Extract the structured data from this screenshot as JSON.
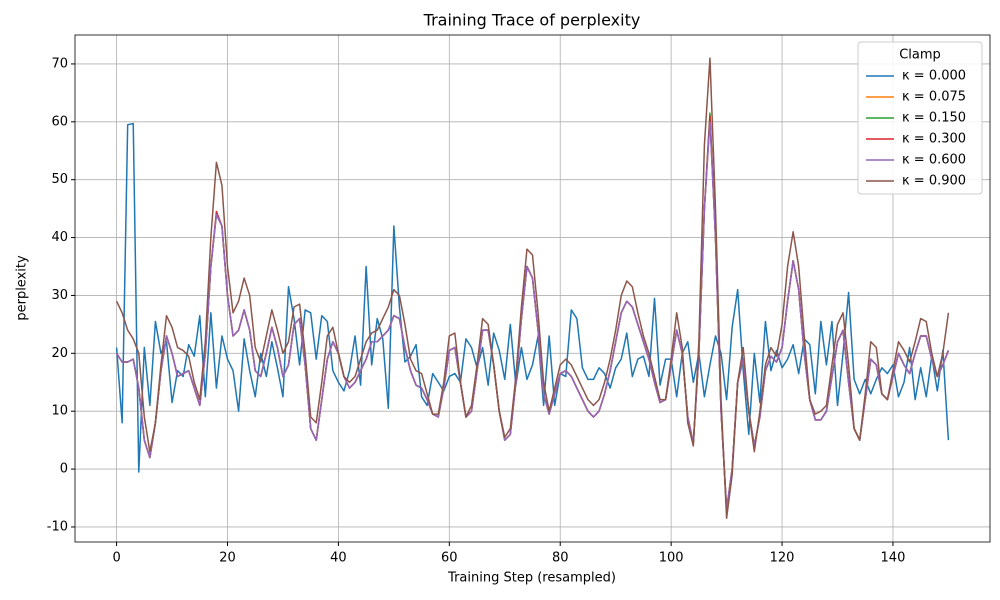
{
  "chart_data": {
    "type": "line",
    "title": "Training Trace of perplexity",
    "x_label": "Training Step (resampled)",
    "y_label": "perplexity",
    "xlim": [
      -7.5,
      157.5
    ],
    "ylim": [
      -12.6,
      75
    ],
    "xticks": [
      0,
      20,
      40,
      60,
      80,
      100,
      120,
      140
    ],
    "yticks": [
      -10,
      0,
      10,
      20,
      30,
      40,
      50,
      60,
      70
    ],
    "grid": true,
    "legend_title": "Clamp",
    "legend_position": "upper-right",
    "x": [
      0,
      1,
      2,
      3,
      4,
      5,
      6,
      7,
      8,
      9,
      10,
      11,
      12,
      13,
      14,
      15,
      16,
      17,
      18,
      19,
      20,
      21,
      22,
      23,
      24,
      25,
      26,
      27,
      28,
      29,
      30,
      31,
      32,
      33,
      34,
      35,
      36,
      37,
      38,
      39,
      40,
      41,
      42,
      43,
      44,
      45,
      46,
      47,
      48,
      49,
      50,
      51,
      52,
      53,
      54,
      55,
      56,
      57,
      58,
      59,
      60,
      61,
      62,
      63,
      64,
      65,
      66,
      67,
      68,
      69,
      70,
      71,
      72,
      73,
      74,
      75,
      76,
      77,
      78,
      79,
      80,
      81,
      82,
      83,
      84,
      85,
      86,
      87,
      88,
      89,
      90,
      91,
      92,
      93,
      94,
      95,
      96,
      97,
      98,
      99,
      100,
      101,
      102,
      103,
      104,
      105,
      106,
      107,
      108,
      109,
      110,
      111,
      112,
      113,
      114,
      115,
      116,
      117,
      118,
      119,
      120,
      121,
      122,
      123,
      124,
      125,
      126,
      127,
      128,
      129,
      130,
      131,
      132,
      133,
      134,
      135,
      136,
      137,
      138,
      139,
      140,
      141,
      142,
      143,
      144,
      145,
      146,
      147,
      148,
      149,
      150
    ],
    "series": [
      {
        "name": "κ = 0.000",
        "color": "#1f77b4",
        "values": [
          21,
          8,
          59.5,
          59.7,
          -0.5,
          21,
          11,
          25.5,
          20,
          22,
          11.5,
          17,
          16,
          21.5,
          19.5,
          26.5,
          12.5,
          27,
          14,
          23,
          19,
          17,
          10,
          22.5,
          17,
          12.5,
          20,
          16,
          22,
          17.5,
          12.5,
          31.5,
          26,
          18,
          27.5,
          27,
          19,
          26.5,
          25.5,
          17,
          15,
          13.5,
          17,
          23,
          14.5,
          35,
          18,
          26,
          22.5,
          10.5,
          42,
          28,
          18.5,
          19.5,
          21.5,
          12.5,
          11,
          16.5,
          15,
          13.5,
          16,
          16.5,
          15,
          22.5,
          21,
          17.5,
          21,
          14.5,
          23.5,
          20.5,
          15.5,
          25,
          14.5,
          21,
          15.5,
          18,
          23,
          11,
          23,
          11,
          16.5,
          16,
          27.5,
          26,
          17.5,
          15.5,
          15.5,
          17.5,
          16.5,
          14,
          17.5,
          19,
          23.5,
          16,
          19,
          19.5,
          16,
          29.5,
          14.5,
          19,
          19,
          12.5,
          20,
          22,
          15,
          20,
          12.5,
          18,
          23,
          20,
          12,
          24.5,
          31,
          17,
          6,
          20,
          11.5,
          25.5,
          17,
          20.5,
          17.5,
          19,
          21.5,
          16.5,
          22.5,
          21.5,
          13,
          25.5,
          18,
          25.5,
          11,
          20,
          30.5,
          15.5,
          13,
          15.5,
          13,
          15.5,
          17.5,
          16.5,
          18,
          12.5,
          15,
          21,
          12,
          17.5,
          12.5,
          19.5,
          13.5,
          20.5,
          5
        ]
      },
      {
        "name": "κ = 0.075",
        "color": "#ff7f0e",
        "values": [
          20,
          18.5,
          18.5,
          19,
          14,
          5,
          2,
          8,
          17,
          23,
          20,
          16,
          16.5,
          17,
          14,
          11,
          20,
          35,
          44,
          42,
          30,
          23,
          24,
          27.5,
          24,
          17,
          16,
          20,
          24.5,
          21,
          16,
          18,
          25,
          26,
          18,
          7,
          5,
          12,
          19,
          22,
          20,
          16,
          14,
          15,
          17,
          19,
          22,
          22,
          23,
          24,
          26.5,
          26,
          21,
          17,
          14.5,
          14,
          12,
          9.5,
          9,
          14,
          20.5,
          21,
          15,
          9,
          10,
          17,
          24,
          24,
          18,
          10,
          5,
          6,
          15,
          26,
          35,
          33,
          24,
          13,
          9.5,
          13,
          16.5,
          17,
          16,
          14,
          12,
          10,
          9,
          10,
          13,
          17,
          22,
          27,
          29,
          28,
          25,
          22,
          19,
          15,
          11.5,
          12,
          18,
          24,
          20,
          9,
          4.5,
          20,
          45,
          60.5,
          40,
          10,
          -7,
          0,
          15,
          19,
          10,
          4,
          9,
          17,
          19.5,
          18.5,
          21,
          29,
          36,
          31,
          20,
          12,
          8.5,
          8.5,
          10,
          16,
          22,
          24,
          15,
          7,
          5,
          12,
          19,
          18,
          13,
          12,
          16,
          20,
          18,
          16.5,
          20,
          23,
          23,
          19,
          16,
          18,
          20.5
        ]
      },
      {
        "name": "κ = 0.150",
        "color": "#2ca02c",
        "values": [
          20,
          18.5,
          18.5,
          19,
          14,
          5,
          2,
          8,
          17,
          23,
          20,
          16,
          16.5,
          17,
          14,
          11,
          20,
          35,
          44,
          42,
          30,
          23,
          24,
          27.5,
          24,
          17,
          16,
          20,
          24.5,
          21,
          16,
          18,
          25,
          26,
          18,
          7,
          5,
          12,
          19,
          22,
          20,
          16,
          14,
          15,
          17,
          19,
          22,
          22,
          23,
          24,
          26.5,
          26,
          21,
          17,
          14.5,
          14,
          12,
          9.5,
          9,
          14,
          20.5,
          21,
          15,
          9,
          10,
          17,
          24,
          24,
          18,
          10,
          5,
          6,
          15,
          26,
          35,
          33,
          24,
          13,
          9.5,
          13,
          16.5,
          17,
          16,
          14,
          12,
          10,
          9,
          10,
          13,
          17,
          22,
          27,
          29,
          28,
          25,
          22,
          19,
          15,
          11.5,
          12,
          18,
          24,
          20,
          9,
          4.5,
          20,
          45,
          61.5,
          40,
          10,
          -7,
          0,
          15,
          19,
          10,
          4,
          9,
          17,
          19.5,
          18.5,
          21,
          29,
          36,
          31,
          20,
          12,
          8.5,
          8.5,
          10,
          16,
          22,
          24,
          15,
          7,
          5,
          12,
          19,
          18,
          13,
          12,
          16,
          20,
          18,
          16.5,
          20,
          23,
          23,
          19,
          16,
          18,
          20.5
        ]
      },
      {
        "name": "κ = 0.300",
        "color": "#d62728",
        "values": [
          20,
          18.5,
          18.5,
          19,
          14,
          5,
          2,
          8,
          17,
          23,
          20,
          16,
          16.5,
          17,
          14,
          11,
          20,
          35,
          44.5,
          42,
          30,
          23,
          24,
          27.5,
          24,
          17,
          16,
          20,
          24.5,
          21,
          16,
          18,
          25,
          26,
          18,
          7,
          5,
          12,
          19,
          22,
          20,
          16,
          14,
          15,
          17,
          19,
          22,
          22,
          23,
          24,
          26.5,
          26,
          21,
          17,
          14.5,
          14,
          12,
          9.5,
          9,
          14,
          20.5,
          21,
          15,
          9,
          10,
          17,
          24,
          24,
          18,
          10,
          5,
          6,
          15,
          26,
          35,
          33,
          24,
          13,
          9.5,
          13,
          16.5,
          17,
          16,
          14,
          12,
          10,
          9,
          10,
          13,
          17,
          22,
          27,
          29,
          28,
          25,
          22,
          19,
          15,
          11.5,
          12,
          18,
          24,
          20,
          9,
          4.5,
          20,
          45,
          61,
          40,
          10,
          -7,
          0,
          15,
          19,
          10,
          4,
          9,
          17,
          19.5,
          18.5,
          21,
          29,
          36,
          31,
          20,
          12,
          8.5,
          8.5,
          10,
          16,
          22,
          24,
          15,
          7,
          5,
          12,
          19,
          18,
          13,
          12,
          16,
          20,
          18,
          16.5,
          20,
          23,
          23,
          19,
          16,
          18,
          20.5
        ]
      },
      {
        "name": "κ = 0.600",
        "color": "#9467bd",
        "values": [
          20,
          18.5,
          18.5,
          19,
          14,
          5,
          2,
          8,
          17,
          23,
          20,
          16,
          16.5,
          17,
          14,
          11,
          20,
          35,
          44,
          42,
          30,
          23,
          24,
          27.5,
          24,
          17,
          16,
          20,
          24.5,
          21,
          16,
          18,
          25,
          26,
          18,
          7,
          5,
          12,
          19,
          22,
          20,
          16,
          14,
          15,
          17,
          19,
          22,
          22,
          23,
          24,
          26.5,
          26,
          21,
          17,
          14.5,
          14,
          12,
          9.5,
          9,
          14,
          20.5,
          21,
          15,
          9,
          10,
          17,
          24,
          24,
          18,
          10,
          5,
          6,
          15,
          26,
          35,
          33,
          24,
          13,
          9.5,
          13,
          16.5,
          17,
          16,
          14,
          12,
          10,
          9,
          10,
          13,
          17,
          22,
          27,
          29,
          28,
          25,
          22,
          19,
          15,
          11.5,
          12,
          18,
          24,
          20,
          9,
          4.5,
          20,
          45,
          60,
          40,
          10,
          -7,
          0,
          15,
          19,
          10,
          4,
          9,
          17,
          19.5,
          18.5,
          21,
          29,
          36,
          31,
          20,
          12,
          8.5,
          8.5,
          10,
          16,
          22,
          24,
          15,
          7,
          5,
          12,
          19,
          18,
          13,
          12,
          16,
          20,
          18,
          16.5,
          20,
          23,
          23,
          19,
          16,
          18,
          20.5
        ]
      },
      {
        "name": "κ = 0.900",
        "color": "#8c564b",
        "values": [
          29,
          27,
          24,
          22.5,
          20,
          9,
          3,
          8,
          18,
          26.5,
          24.5,
          21,
          20.5,
          19.5,
          15,
          12,
          22,
          40,
          53,
          49,
          35,
          27,
          29,
          33,
          30,
          21,
          18.5,
          23,
          27.5,
          24,
          20,
          22,
          28,
          28.5,
          20,
          9,
          8,
          15,
          23,
          24.5,
          20,
          16,
          15,
          16,
          19,
          22,
          23.5,
          24,
          26,
          28,
          31,
          30,
          25,
          19,
          17,
          16.5,
          13,
          9.5,
          9.5,
          15,
          23,
          23.5,
          15,
          9,
          11,
          18,
          26,
          25,
          18,
          10,
          5.5,
          7,
          16,
          28,
          38,
          37,
          27,
          15,
          10,
          14,
          18,
          19,
          18,
          16,
          14,
          12,
          11,
          12,
          15,
          19,
          24,
          30,
          32.5,
          31.5,
          27,
          23,
          20,
          16,
          12,
          12,
          19,
          27,
          21,
          8,
          4,
          22,
          56,
          71,
          45,
          12,
          -8.5,
          -1,
          15,
          21,
          10,
          3,
          10,
          18,
          21,
          19.5,
          25,
          35,
          41,
          35,
          23,
          12,
          9.5,
          10,
          11,
          18,
          25,
          27,
          18,
          7,
          5,
          13,
          22,
          21,
          13,
          12,
          17,
          22,
          20.5,
          18.5,
          22,
          26,
          25.5,
          20,
          16,
          20,
          27
        ]
      }
    ]
  }
}
